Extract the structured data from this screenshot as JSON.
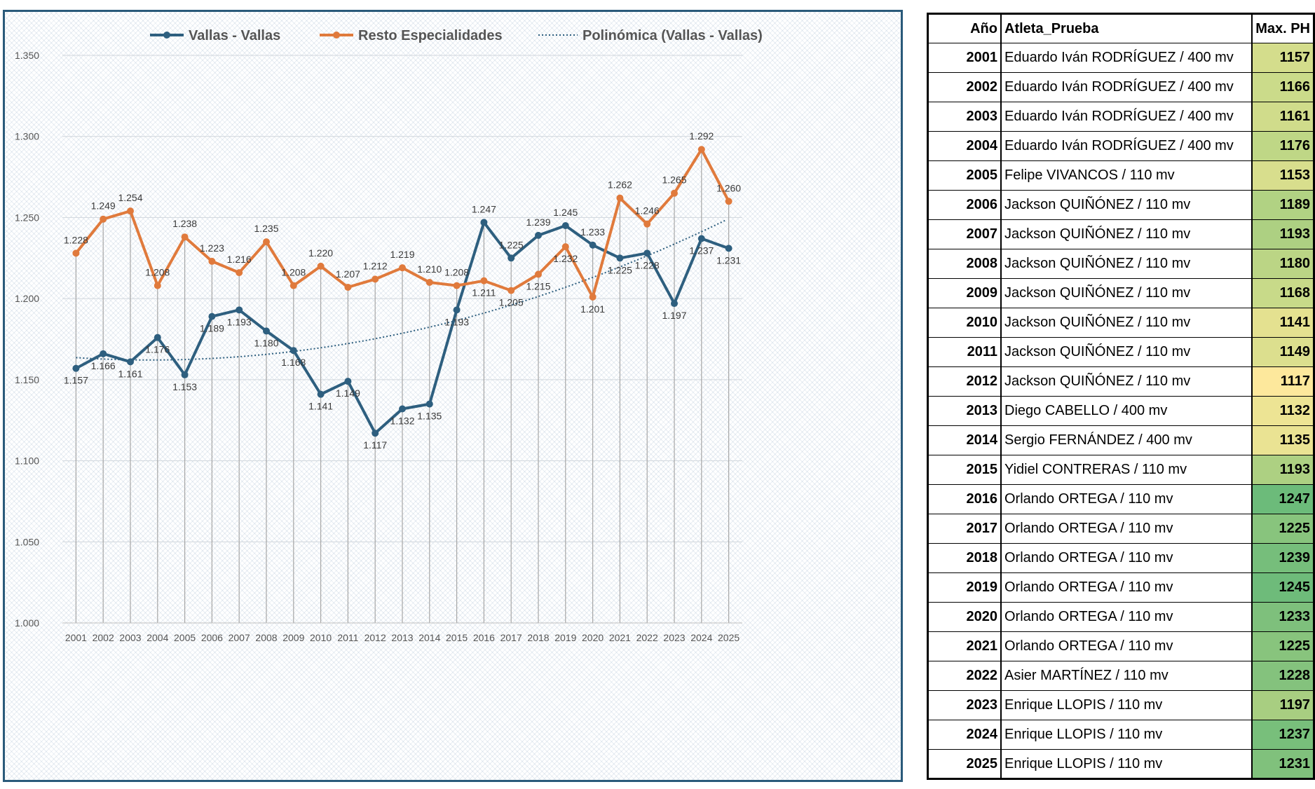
{
  "chart_data": {
    "type": "line",
    "categories": [
      "2001",
      "2002",
      "2003",
      "2004",
      "2005",
      "2006",
      "2007",
      "2008",
      "2009",
      "2010",
      "2011",
      "2012",
      "2013",
      "2014",
      "2015",
      "2016",
      "2017",
      "2018",
      "2019",
      "2020",
      "2021",
      "2022",
      "2023",
      "2024",
      "2025"
    ],
    "series": [
      {
        "name": "Vallas - Vallas",
        "color": "#2e5f7f",
        "values": [
          1157,
          1166,
          1161,
          1176,
          1153,
          1189,
          1193,
          1180,
          1168,
          1141,
          1149,
          1117,
          1132,
          1135,
          1193,
          1247,
          1225,
          1239,
          1245,
          1233,
          1225,
          1228,
          1197,
          1237,
          1231
        ]
      },
      {
        "name": "Resto Especialidades",
        "color": "#e07a3c",
        "values": [
          1228,
          1249,
          1254,
          1208,
          1238,
          1223,
          1216,
          1235,
          1208,
          1220,
          1207,
          1212,
          1219,
          1210,
          1208,
          1211,
          1205,
          1215,
          1232,
          1201,
          1262,
          1246,
          1265,
          1292,
          1260
        ]
      }
    ],
    "trendline": {
      "name": "Polinómica (Vallas - Vallas)",
      "color": "#2e5f7f",
      "type": "polynomial",
      "of_series": "Vallas - Vallas"
    },
    "yticks": [
      "1.000",
      "1.050",
      "1.100",
      "1.150",
      "1.200",
      "1.250",
      "1.300",
      "1.350"
    ],
    "ylim": [
      1000,
      1350
    ],
    "value_labels": {
      "Vallas - Vallas": [
        "1.157",
        "1.166",
        "1.161",
        "1.176",
        "1.153",
        "1.189",
        "1.193",
        "1.180",
        "1.168",
        "1.141",
        "1.149",
        "1.117",
        "1.132",
        "1.135",
        "1.193",
        "1.247",
        "1.225",
        "1.239",
        "1.245",
        "1.233",
        "1.225",
        "1.228",
        "1.197",
        "1.237",
        "1.231"
      ],
      "Resto Especialidades": [
        "1.228",
        "1.249",
        "1.254",
        "1.208",
        "1.238",
        "1.223",
        "1.216",
        "1.235",
        "1.208",
        "1.220",
        "1.207",
        "1.212",
        "1.219",
        "1.210",
        "1.208",
        "1.211",
        "1.205",
        "1.215",
        "1.232",
        "1.201",
        "1.262",
        "1.246",
        "1.265",
        "1.292",
        "1.260"
      ]
    },
    "title": "",
    "xlabel": "",
    "ylabel": "",
    "grid": true,
    "legend": "top"
  },
  "table": {
    "headers": {
      "year": "Año",
      "name": "Atleta_Prueba",
      "value": "Max. PH"
    },
    "rows": [
      {
        "year": "2001",
        "name": "Eduardo Iván RODRÍGUEZ / 400 mv",
        "value": "1157",
        "color": "#d4dd8c"
      },
      {
        "year": "2002",
        "name": "Eduardo Iván RODRÍGUEZ / 400 mv",
        "value": "1166",
        "color": "#cbdb8a"
      },
      {
        "year": "2003",
        "name": "Eduardo Iván RODRÍGUEZ / 400 mv",
        "value": "1161",
        "color": "#d0dc8b"
      },
      {
        "year": "2004",
        "name": "Eduardo Iván RODRÍGUEZ / 400 mv",
        "value": "1176",
        "color": "#bfd786"
      },
      {
        "year": "2005",
        "name": "Felipe VIVANCOS / 110 mv",
        "value": "1153",
        "color": "#d8de8d"
      },
      {
        "year": "2006",
        "name": "Jackson QUIÑÓNEZ / 110 mv",
        "value": "1189",
        "color": "#b1d283"
      },
      {
        "year": "2007",
        "name": "Jackson QUIÑÓNEZ / 110 mv",
        "value": "1193",
        "color": "#add082"
      },
      {
        "year": "2008",
        "name": "Jackson QUIÑÓNEZ / 110 mv",
        "value": "1180",
        "color": "#bbd585"
      },
      {
        "year": "2009",
        "name": "Jackson QUIÑÓNEZ / 110 mv",
        "value": "1168",
        "color": "#c8da89"
      },
      {
        "year": "2010",
        "name": "Jackson QUIÑÓNEZ / 110 mv",
        "value": "1141",
        "color": "#e4e190"
      },
      {
        "year": "2011",
        "name": "Jackson QUIÑÓNEZ / 110 mv",
        "value": "1149",
        "color": "#dcdf8e"
      },
      {
        "year": "2012",
        "name": "Jackson QUIÑÓNEZ / 110 mv",
        "value": "1117",
        "color": "#fde89c"
      },
      {
        "year": "2013",
        "name": "Diego CABELLO / 400 mv",
        "value": "1132",
        "color": "#ede494"
      },
      {
        "year": "2014",
        "name": "Sergio FERNÁNDEZ / 400 mv",
        "value": "1135",
        "color": "#eae393"
      },
      {
        "year": "2015",
        "name": "Yidiel CONTRERAS / 110 mv",
        "value": "1193",
        "color": "#add082"
      },
      {
        "year": "2016",
        "name": "Orlando ORTEGA / 110 mv",
        "value": "1247",
        "color": "#6cbb7a"
      },
      {
        "year": "2017",
        "name": "Orlando ORTEGA / 110 mv",
        "value": "1225",
        "color": "#88c47d"
      },
      {
        "year": "2018",
        "name": "Orlando ORTEGA / 110 mv",
        "value": "1239",
        "color": "#76be7b"
      },
      {
        "year": "2019",
        "name": "Orlando ORTEGA / 110 mv",
        "value": "1245",
        "color": "#6ebb7a"
      },
      {
        "year": "2020",
        "name": "Orlando ORTEGA / 110 mv",
        "value": "1233",
        "color": "#7ec07c"
      },
      {
        "year": "2021",
        "name": "Orlando ORTEGA / 110 mv",
        "value": "1225",
        "color": "#88c47d"
      },
      {
        "year": "2022",
        "name": "Asier MARTÍNEZ / 110 mv",
        "value": "1228",
        "color": "#84c27d"
      },
      {
        "year": "2023",
        "name": "Enrique LLOPIS / 110 mv",
        "value": "1197",
        "color": "#a8ce81"
      },
      {
        "year": "2024",
        "name": "Enrique LLOPIS / 110 mv",
        "value": "1237",
        "color": "#78bf7b"
      },
      {
        "year": "2025",
        "name": "Enrique LLOPIS / 110 mv",
        "value": "1231",
        "color": "#80c17c"
      }
    ]
  }
}
